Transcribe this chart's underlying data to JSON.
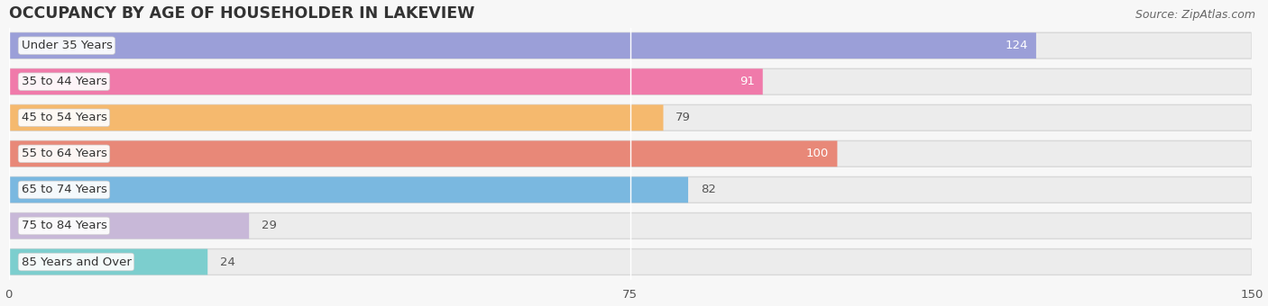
{
  "title": "OCCUPANCY BY AGE OF HOUSEHOLDER IN LAKEVIEW",
  "source": "Source: ZipAtlas.com",
  "categories": [
    "Under 35 Years",
    "35 to 44 Years",
    "45 to 54 Years",
    "55 to 64 Years",
    "65 to 74 Years",
    "75 to 84 Years",
    "85 Years and Over"
  ],
  "values": [
    124,
    91,
    79,
    100,
    82,
    29,
    24
  ],
  "bar_colors": [
    "#9b9fd8",
    "#f07aaa",
    "#f5b96e",
    "#e88878",
    "#7ab8e0",
    "#c8b8d8",
    "#7ccece"
  ],
  "row_bg_color": "#ececec",
  "row_shadow_color": "#d8d8d8",
  "xlim_min": 0,
  "xlim_max": 150,
  "xticks": [
    0,
    75,
    150
  ],
  "title_fontsize": 12.5,
  "label_fontsize": 9.5,
  "value_fontsize": 9.5,
  "source_fontsize": 9,
  "background_color": "#f7f7f7",
  "grid_color": "#cccccc",
  "label_bg_color": "#ffffff",
  "value_inside_color": "#ffffff",
  "value_outside_color": "#555555"
}
